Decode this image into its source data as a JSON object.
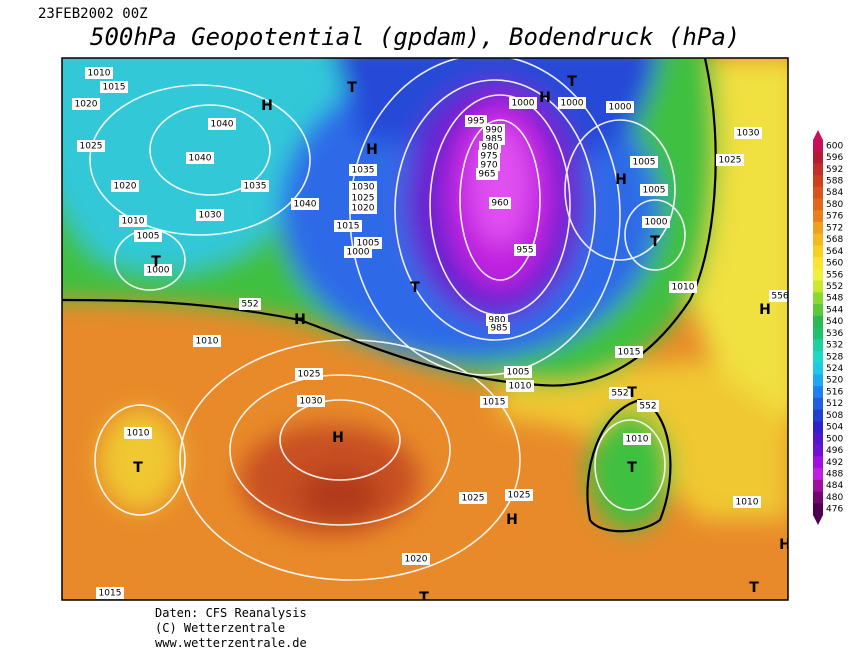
{
  "header": {
    "datetime": "23FEB2002 00Z",
    "title": "500hPa Geopotential (gpdam), Bodendruck (hPa)"
  },
  "map": {
    "pressure_labels": [
      "1010",
      "1015",
      "1020",
      "1025",
      "1020",
      "1040",
      "1040",
      "1035",
      "1030",
      "1010",
      "1005",
      "1000",
      "1040",
      "1035",
      "1030",
      "1025",
      "1020",
      "1015",
      "1005",
      "1000",
      "995",
      "990",
      "985",
      "980",
      "975",
      "970",
      "965",
      "960",
      "955",
      "980",
      "985",
      "1000",
      "1000",
      "1000",
      "1005",
      "1005",
      "1000",
      "1030",
      "1025",
      "1010",
      "1015",
      "1005",
      "1010",
      "1015",
      "1010",
      "1025",
      "1030",
      "1010",
      "1025",
      "1025",
      "1020",
      "1015",
      "1010",
      "1010",
      "552",
      "552",
      "552",
      "556"
    ],
    "centers": [
      "H",
      "T",
      "H",
      "T",
      "T",
      "H",
      "T",
      "H",
      "T",
      "H",
      "H",
      "T",
      "H",
      "T",
      "T",
      "H",
      "T",
      "H",
      "T"
    ]
  },
  "colorbar": {
    "values": [
      600,
      596,
      592,
      588,
      584,
      580,
      576,
      572,
      568,
      564,
      560,
      556,
      552,
      548,
      544,
      540,
      536,
      532,
      528,
      524,
      520,
      516,
      512,
      508,
      504,
      500,
      496,
      492,
      488,
      484,
      480,
      476
    ],
    "colors": [
      "#c8105a",
      "#b01e30",
      "#c0302a",
      "#cc4020",
      "#d8541e",
      "#e0681e",
      "#e8801e",
      "#eea020",
      "#f4b822",
      "#f8d024",
      "#fae430",
      "#f0f040",
      "#c8e832",
      "#8cd832",
      "#5cc83c",
      "#30b850",
      "#20c070",
      "#20d0a0",
      "#20d8c8",
      "#20c8e8",
      "#20a8f0",
      "#2080f0",
      "#2060e0",
      "#2040d0",
      "#3020c8",
      "#5018c8",
      "#7010d0",
      "#a010e0",
      "#c020e0",
      "#a010a0",
      "#700870",
      "#500050"
    ]
  },
  "footer": {
    "lines": [
      "Daten: CFS Reanalysis",
      "(C) Wetterzentrale",
      "www.wetterzentrale.de"
    ]
  }
}
